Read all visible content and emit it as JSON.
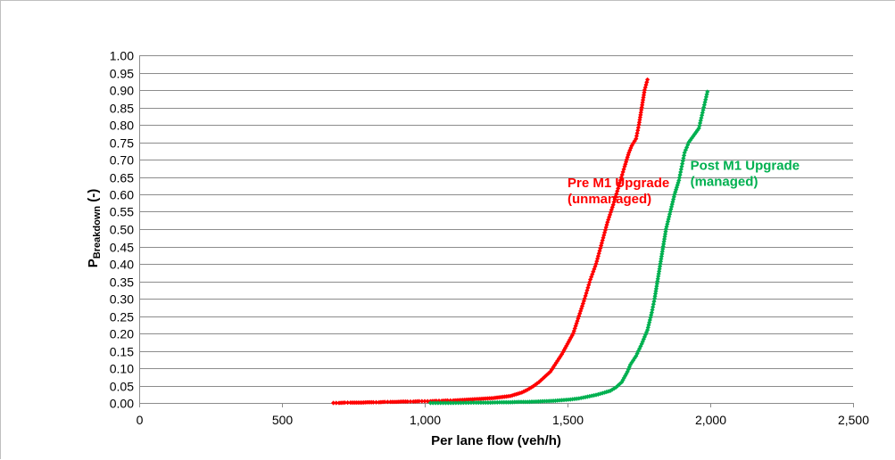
{
  "chart_data": {
    "type": "scatter",
    "title": "",
    "xlabel": "Per lane flow (veh/h)",
    "ylabel_main": "P",
    "ylabel_sub": "Breakdown",
    "ylabel_suffix": " (-)",
    "xlim": [
      0,
      2500
    ],
    "ylim": [
      0,
      1
    ],
    "x_ticks": [
      0,
      500,
      1000,
      1500,
      2000,
      2500
    ],
    "x_tick_labels": [
      "0",
      "500",
      "1,000",
      "1,500",
      "2,000",
      "2,500"
    ],
    "y_ticks": [
      0,
      0.05,
      0.1,
      0.15,
      0.2,
      0.25,
      0.3,
      0.35,
      0.4,
      0.45,
      0.5,
      0.55,
      0.6,
      0.65,
      0.7,
      0.75,
      0.8,
      0.85,
      0.9,
      0.95,
      1.0
    ],
    "y_tick_labels": [
      "0.00",
      "0.05",
      "0.10",
      "0.15",
      "0.20",
      "0.25",
      "0.30",
      "0.35",
      "0.40",
      "0.45",
      "0.50",
      "0.55",
      "0.60",
      "0.65",
      "0.70",
      "0.75",
      "0.80",
      "0.85",
      "0.90",
      "0.95",
      "1.00"
    ],
    "grid": "horizontal",
    "legend": "none",
    "series": [
      {
        "color": "#ff0000",
        "points": [
          [
            680,
            0
          ],
          [
            700,
            0
          ],
          [
            720,
            0.001
          ],
          [
            740,
            0.001
          ],
          [
            760,
            0.001
          ],
          [
            780,
            0.001
          ],
          [
            800,
            0.002
          ],
          [
            820,
            0.002
          ],
          [
            840,
            0.002
          ],
          [
            860,
            0.003
          ],
          [
            880,
            0.003
          ],
          [
            900,
            0.003
          ],
          [
            920,
            0.004
          ],
          [
            940,
            0.004
          ],
          [
            960,
            0.004
          ],
          [
            980,
            0.005
          ],
          [
            1000,
            0.005
          ],
          [
            1020,
            0.005
          ],
          [
            1040,
            0.006
          ],
          [
            1060,
            0.006
          ],
          [
            1080,
            0.007
          ],
          [
            1100,
            0.007
          ],
          [
            1120,
            0.008
          ],
          [
            1140,
            0.009
          ],
          [
            1160,
            0.01
          ],
          [
            1180,
            0.011
          ],
          [
            1200,
            0.012
          ],
          [
            1220,
            0.013
          ],
          [
            1240,
            0.014
          ],
          [
            1260,
            0.016
          ],
          [
            1280,
            0.018
          ],
          [
            1300,
            0.02
          ],
          [
            1320,
            0.025
          ],
          [
            1340,
            0.03
          ],
          [
            1360,
            0.038
          ],
          [
            1380,
            0.048
          ],
          [
            1400,
            0.06
          ],
          [
            1420,
            0.075
          ],
          [
            1440,
            0.09
          ],
          [
            1460,
            0.115
          ],
          [
            1480,
            0.14
          ],
          [
            1500,
            0.17
          ],
          [
            1520,
            0.2
          ],
          [
            1540,
            0.25
          ],
          [
            1560,
            0.3
          ],
          [
            1580,
            0.355
          ],
          [
            1600,
            0.4
          ],
          [
            1620,
            0.46
          ],
          [
            1640,
            0.52
          ],
          [
            1660,
            0.57
          ],
          [
            1680,
            0.625
          ],
          [
            1700,
            0.68
          ],
          [
            1715,
            0.72
          ],
          [
            1725,
            0.74
          ],
          [
            1740,
            0.76
          ],
          [
            1750,
            0.8
          ],
          [
            1760,
            0.85
          ],
          [
            1770,
            0.9
          ],
          [
            1780,
            0.93
          ]
        ]
      },
      {
        "color": "#00b050",
        "points": [
          [
            1020,
            0
          ],
          [
            1100,
            0
          ],
          [
            1180,
            0.001
          ],
          [
            1230,
            0.001
          ],
          [
            1270,
            0.002
          ],
          [
            1300,
            0.002
          ],
          [
            1330,
            0.003
          ],
          [
            1360,
            0.003
          ],
          [
            1390,
            0.004
          ],
          [
            1420,
            0.005
          ],
          [
            1450,
            0.006
          ],
          [
            1480,
            0.008
          ],
          [
            1510,
            0.01
          ],
          [
            1540,
            0.013
          ],
          [
            1570,
            0.018
          ],
          [
            1600,
            0.023
          ],
          [
            1630,
            0.03
          ],
          [
            1650,
            0.035
          ],
          [
            1670,
            0.045
          ],
          [
            1690,
            0.06
          ],
          [
            1710,
            0.09
          ],
          [
            1720,
            0.11
          ],
          [
            1740,
            0.135
          ],
          [
            1760,
            0.17
          ],
          [
            1780,
            0.21
          ],
          [
            1795,
            0.26
          ],
          [
            1805,
            0.3
          ],
          [
            1815,
            0.35
          ],
          [
            1825,
            0.4
          ],
          [
            1835,
            0.45
          ],
          [
            1845,
            0.5
          ],
          [
            1860,
            0.55
          ],
          [
            1875,
            0.6
          ],
          [
            1890,
            0.64
          ],
          [
            1900,
            0.68
          ],
          [
            1910,
            0.72
          ],
          [
            1925,
            0.75
          ],
          [
            1960,
            0.79
          ],
          [
            1990,
            0.895
          ]
        ]
      }
    ],
    "annotations": [
      {
        "line1": "Pre M1 Upgrade",
        "line2": "(unmanaged)",
        "color": "#ff0000",
        "x": 1500,
        "y": 0.62,
        "anchor": "start"
      },
      {
        "line1": "Post M1 Upgrade",
        "line2": "(managed)",
        "color": "#00b050",
        "x": 1930,
        "y": 0.67,
        "anchor": "start"
      }
    ]
  }
}
